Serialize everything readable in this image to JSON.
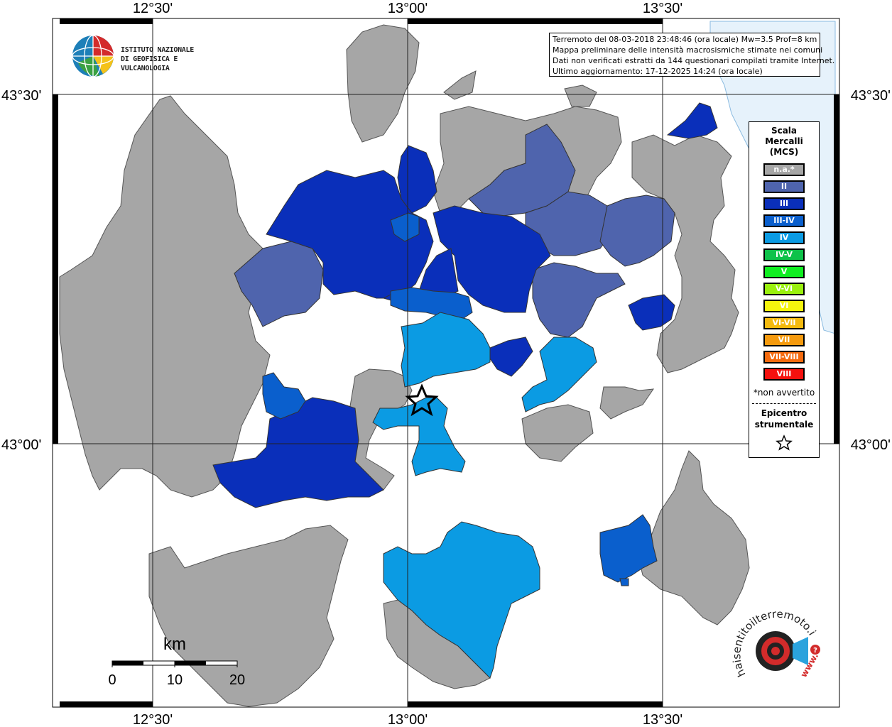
{
  "info": {
    "line1": "Terremoto del 08-03-2018 23:48:46 (ora locale) Mw=3.5 Prof=8 km",
    "line2": "Mappa preliminare delle intensità macrosismiche stimate nei comuni",
    "line3": "Dati non verificati estratti da 144 questionari compilati tramite Internet.",
    "line4": "Ultimo aggiornamento: 17-12-2025 14:24 (ora locale)"
  },
  "logo": {
    "line1": "ISTITUTO NAZIONALE",
    "line2": "DI GEOFISICA E VULCANOLOGIA"
  },
  "coords": {
    "top": [
      "12°30'",
      "13°00'",
      "13°30'"
    ],
    "bottom": [
      "12°30'",
      "13°00'",
      "13°30'"
    ],
    "left": [
      "43°30'",
      "43°00'"
    ],
    "right": [
      "43°30'",
      "43°00'"
    ]
  },
  "legend": {
    "title1": "Scala",
    "title2": "Mercalli",
    "title3": "(MCS)",
    "items": [
      {
        "label": "n.a.*",
        "color": "#a6a6a6"
      },
      {
        "label": "II",
        "color": "#4f64ad"
      },
      {
        "label": "III",
        "color": "#0a2fba"
      },
      {
        "label": "III-IV",
        "color": "#0a5fcd"
      },
      {
        "label": "IV",
        "color": "#0b9be3"
      },
      {
        "label": "IV-V",
        "color": "#0ec24a"
      },
      {
        "label": "V",
        "color": "#10ee21"
      },
      {
        "label": "V-VI",
        "color": "#9af00e"
      },
      {
        "label": "VI",
        "color": "#f5f50e"
      },
      {
        "label": "VI-VII",
        "color": "#f5ba0e"
      },
      {
        "label": "VII",
        "color": "#f59a0e"
      },
      {
        "label": "VII-VIII",
        "color": "#f56a0e"
      },
      {
        "label": "VIII",
        "color": "#f5110e"
      }
    ],
    "note": "*non avvertito",
    "epi1": "Epicentro",
    "epi2": "strumentale"
  },
  "scalebar": {
    "unit": "km",
    "labels": [
      "0",
      "10",
      "20"
    ]
  },
  "hsi": {
    "text": "haisentitoilterremoto.it",
    "url": "www."
  },
  "colors": {
    "na": "#a6a6a6",
    "ii": "#4f64ad",
    "iii": "#0a2fba",
    "iii_iv": "#0a5fcd",
    "iv": "#0b9be3",
    "sea": "#e6f2fb"
  }
}
